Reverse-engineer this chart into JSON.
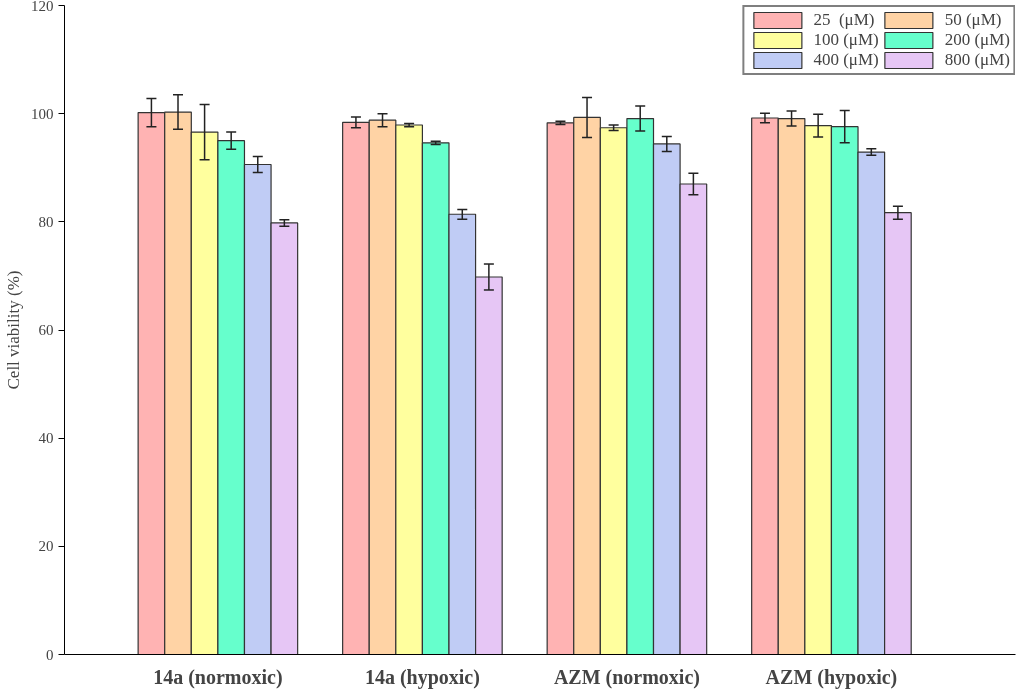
{
  "chart_data": {
    "type": "bar",
    "ylabel": "Cell viability (%)",
    "categories": [
      "14a (normoxic)",
      "14a (hypoxic)",
      "AZM (normoxic)",
      "AZM (hypoxic)"
    ],
    "series": [
      {
        "name": "25  (μM)",
        "color": "#ffb3b3",
        "values": [
          100.2,
          98.4,
          98.3,
          99.2
        ],
        "errors": [
          2.6,
          1.0,
          0.3,
          0.9
        ]
      },
      {
        "name": "50 (μM)",
        "color": "#ffd3a5",
        "values": [
          100.3,
          98.8,
          99.3,
          99.1
        ],
        "errors": [
          3.2,
          1.2,
          3.7,
          1.4
        ]
      },
      {
        "name": "100 (μM)",
        "color": "#ffff9e",
        "values": [
          96.6,
          97.9,
          97.4,
          97.8
        ],
        "errors": [
          5.1,
          0.3,
          0.5,
          2.1
        ]
      },
      {
        "name": "200 (μM)",
        "color": "#66ffcc",
        "values": [
          95.0,
          94.6,
          99.1,
          97.6
        ],
        "errors": [
          1.6,
          0.3,
          2.3,
          3.0
        ]
      },
      {
        "name": "400 (μM)",
        "color": "#c0ccf5",
        "values": [
          90.6,
          81.4,
          94.4,
          92.9
        ],
        "errors": [
          1.5,
          0.9,
          1.4,
          0.6
        ]
      },
      {
        "name": "800 (μM)",
        "color": "#e6c6f5",
        "values": [
          79.8,
          69.8,
          87.0,
          81.7
        ],
        "errors": [
          0.6,
          2.4,
          2.0,
          1.2
        ]
      }
    ],
    "ylim": [
      0,
      120
    ],
    "yticks": [
      0,
      20,
      40,
      60,
      80,
      100,
      120
    ],
    "grid": false,
    "legend": "top right"
  }
}
